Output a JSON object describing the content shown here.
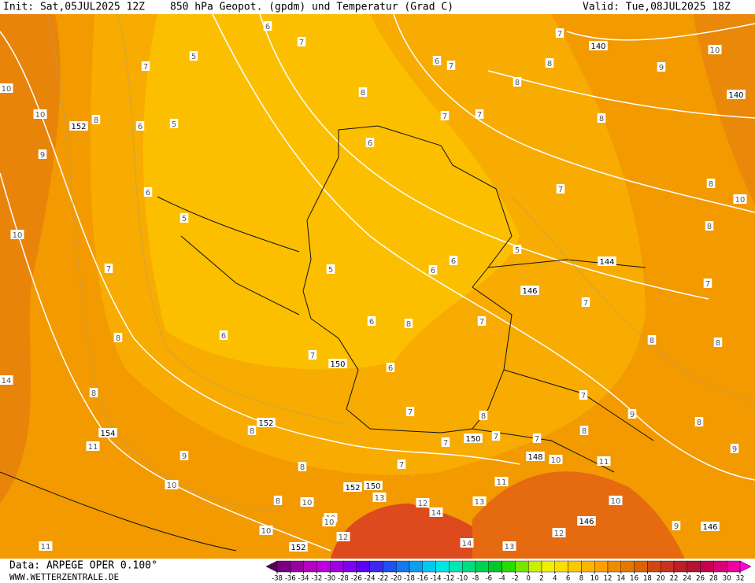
{
  "header": {
    "init": "Init: Sat,05JUL2025 12Z",
    "title": "850 hPa Geopot. (gpdm) und Temperatur (Grad C)",
    "valid": "Valid: Tue,08JUL2025 18Z"
  },
  "footer": {
    "data": "Data: ARPEGE OPER 0.100°",
    "site": "WWW.WETTERZENTRALE.DE"
  },
  "temperature_labels": [
    6,
    7,
    5,
    7,
    5,
    6,
    8,
    9,
    6,
    5,
    7,
    8,
    6,
    7,
    5,
    6,
    8,
    6,
    7,
    7,
    7,
    8,
    8,
    7,
    8,
    7,
    5,
    6,
    6,
    7,
    8,
    6,
    6,
    7,
    8,
    7,
    7,
    7,
    8,
    7,
    8,
    7,
    8,
    8,
    9,
    9,
    8,
    9,
    8,
    8,
    8,
    9,
    8,
    8,
    10,
    10,
    10,
    10,
    11,
    11,
    7,
    7,
    11,
    11,
    10,
    10,
    13,
    14,
    14,
    13,
    12,
    9,
    12,
    13,
    10,
    10,
    10,
    10,
    10,
    14,
    12,
    10
  ],
  "geopotential_labels": [
    140,
    140,
    152,
    144,
    146,
    150,
    152,
    154,
    150,
    148,
    152,
    150,
    146,
    146,
    152
  ],
  "colorbar": {
    "ticks": [
      -38,
      -36,
      -34,
      -32,
      -30,
      -28,
      -26,
      -24,
      -22,
      -20,
      -18,
      -16,
      -14,
      -12,
      -10,
      -8,
      -6,
      -4,
      -2,
      0,
      2,
      4,
      6,
      8,
      10,
      12,
      14,
      16,
      18,
      20,
      22,
      24,
      26,
      28,
      30,
      32
    ],
    "colors": [
      "#5a005a",
      "#7a0082",
      "#9a009e",
      "#b400c0",
      "#c000e0",
      "#a000e6",
      "#8000f0",
      "#6000f0",
      "#3c28f0",
      "#2050f0",
      "#1478f0",
      "#0aa0f0",
      "#00c8f0",
      "#00e6e6",
      "#00e6b4",
      "#00dc82",
      "#00d250",
      "#00c828",
      "#28dc00",
      "#78e600",
      "#c8f000",
      "#f0f000",
      "#ffdc00",
      "#ffc800",
      "#ffb400",
      "#ffa000",
      "#f08c00",
      "#e67800",
      "#dc6400",
      "#d24614",
      "#c8321e",
      "#be1e28",
      "#b41432",
      "#c80050",
      "#dc0078",
      "#f000a0",
      "#ff00dc"
    ]
  }
}
